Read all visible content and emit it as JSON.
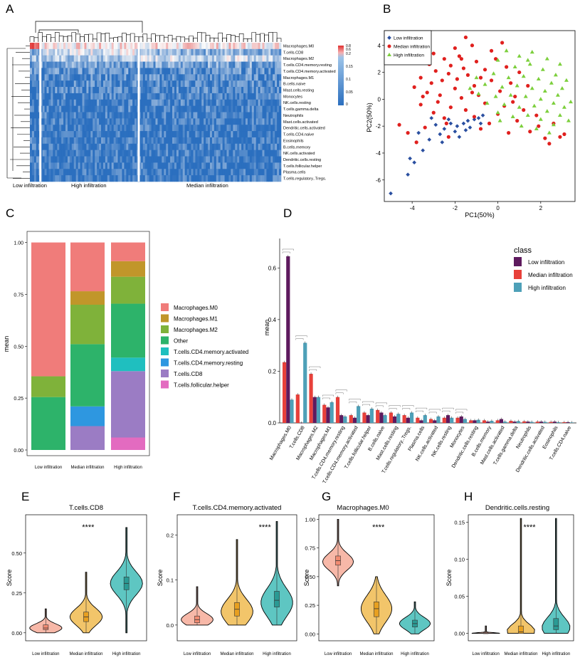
{
  "colors": {
    "low": "#5e1a5e",
    "median": "#e8403a",
    "high": "#4ea0b8",
    "pca_low": "#2a4fa0",
    "pca_median": "#e0201e",
    "pca_high": "#7ccf3c",
    "heat_low": "#2b6fbf",
    "heat_high": "#e03030"
  },
  "panel_letters": [
    "A",
    "B",
    "C",
    "D",
    "E",
    "F",
    "G",
    "H"
  ],
  "heatmap": {
    "row_labels": [
      "Macrophages.M0",
      "T.cells.CD8",
      "Macrophages.M2",
      "T.cells.CD4.memory.resting",
      "T.cells.CD4.memory.activated",
      "Macrophages.M1",
      "B.cells.naive",
      "Mast.cells.resting",
      "Monocytes",
      "NK.cells.resting",
      "T.cells.gamma.delta",
      "Neutrophils",
      "Mast.cells.activated",
      "Dendritic.cells.activated",
      "T.cells.CD4.naive",
      "Eosinophils",
      "B.cells.memory",
      "NK.cells.activated",
      "Dendritic.cells.resting",
      "T.cells.follicular.helper",
      "Plasma.cells",
      "T.cells.regulatory..Tregs."
    ],
    "legend_ticks": [
      "0.8",
      "0.6",
      "0.2",
      "0.15",
      "0.1",
      "0.05",
      "0"
    ],
    "group_labels": [
      "Low infiltration",
      "High infiltration",
      "Median infiltration"
    ]
  },
  "chart_data": [
    {
      "panel": "B",
      "type": "scatter",
      "xlabel": "PC1(50%)",
      "ylabel": "PC2(50%)",
      "xlim": [
        -5.3,
        3.6
      ],
      "ylim": [
        -7.6,
        5.1
      ],
      "xticks": [
        "-4",
        "-2",
        "0",
        "2"
      ],
      "yticks": [
        "4",
        "2",
        "0",
        "-2",
        "-4",
        "-6"
      ],
      "legend": [
        "Low infiltration",
        "Median infiltration",
        "High infiltration"
      ],
      "series": [
        {
          "name": "Low infiltration",
          "points": [
            [
              -5.0,
              -7.0
            ],
            [
              -4.2,
              -5.6
            ],
            [
              -3.9,
              -4.7
            ],
            [
              -4.1,
              -4.4
            ],
            [
              -3.5,
              -3.8
            ],
            [
              -3.2,
              -3.0
            ],
            [
              -2.7,
              -2.6
            ],
            [
              -2.5,
              -2.2
            ],
            [
              -2.2,
              -1.8
            ],
            [
              -1.9,
              -2.0
            ],
            [
              -1.6,
              -1.8
            ],
            [
              -1.4,
              -1.6
            ],
            [
              -1.3,
              -2.1
            ],
            [
              -1.1,
              -1.5
            ],
            [
              -0.9,
              -1.4
            ],
            [
              -0.7,
              -1.2
            ],
            [
              -2.9,
              -1.9
            ],
            [
              -2.0,
              -2.4
            ],
            [
              -3.7,
              -2.5
            ],
            [
              -1.8,
              -2.8
            ],
            [
              -2.3,
              -1.5
            ],
            [
              -3.1,
              -1.4
            ],
            [
              -0.8,
              -1.8
            ],
            [
              -2.6,
              -3.2
            ],
            [
              -1.5,
              -2.3
            ]
          ]
        },
        {
          "name": "Median infiltration",
          "points": [
            [
              -1.5,
              4.6
            ],
            [
              -1.2,
              4.0
            ],
            [
              -2.0,
              3.8
            ],
            [
              -0.3,
              3.6
            ],
            [
              0.2,
              4.2
            ],
            [
              -1.8,
              3.2
            ],
            [
              -2.5,
              3.0
            ],
            [
              -3.2,
              2.6
            ],
            [
              -2.9,
              2.1
            ],
            [
              -3.6,
              1.6
            ],
            [
              -3.9,
              0.9
            ],
            [
              -2.2,
              2.5
            ],
            [
              -1.0,
              2.8
            ],
            [
              -0.6,
              2.2
            ],
            [
              0.4,
              2.4
            ],
            [
              1.0,
              2.0
            ],
            [
              -1.4,
              1.8
            ],
            [
              -2.6,
              1.4
            ],
            [
              -3.3,
              0.5
            ],
            [
              -2.0,
              0.8
            ],
            [
              -1.1,
              1.0
            ],
            [
              -0.3,
              1.4
            ],
            [
              0.6,
              1.2
            ],
            [
              1.4,
              1.0
            ],
            [
              -2.8,
              -0.2
            ],
            [
              -1.7,
              0.1
            ],
            [
              -0.9,
              0.3
            ],
            [
              0.1,
              0.6
            ],
            [
              0.8,
              0.2
            ],
            [
              -3.6,
              -0.4
            ],
            [
              -3.0,
              -1.0
            ],
            [
              -2.2,
              -0.6
            ],
            [
              -1.5,
              -0.8
            ],
            [
              -0.6,
              -0.3
            ],
            [
              0.3,
              -0.5
            ],
            [
              1.2,
              -0.8
            ],
            [
              -2.5,
              -1.4
            ],
            [
              -1.1,
              -1.3
            ],
            [
              0.0,
              -1.1
            ],
            [
              0.9,
              -1.6
            ],
            [
              1.8,
              -1.2
            ],
            [
              2.6,
              -1.8
            ],
            [
              2.9,
              -2.8
            ],
            [
              2.4,
              -3.3
            ],
            [
              3.1,
              -2.6
            ],
            [
              -4.2,
              -2.5
            ],
            [
              -3.8,
              -3.2
            ],
            [
              -4.6,
              -1.9
            ],
            [
              -3.4,
              -2.1
            ],
            [
              -2.3,
              -2.8
            ],
            [
              -0.8,
              -2.2
            ],
            [
              0.5,
              -2.5
            ],
            [
              1.5,
              -2.4
            ],
            [
              2.2,
              -2.9
            ],
            [
              -4.3,
              3.2
            ],
            [
              -3.0,
              3.4
            ],
            [
              -1.6,
              2.3
            ],
            [
              -0.1,
              3.0
            ],
            [
              -2.7,
              0.3
            ],
            [
              -1.9,
              1.5
            ],
            [
              -3.1,
              1.2
            ],
            [
              0.7,
              -0.2
            ],
            [
              -0.4,
              -1.8
            ],
            [
              1.9,
              -2.0
            ],
            [
              -1.2,
              0.5
            ],
            [
              -2.4,
              -1.8
            ],
            [
              -3.5,
              0.2
            ],
            [
              -0.8,
              1.6
            ],
            [
              -1.7,
              3.0
            ],
            [
              -2.3,
              1.9
            ]
          ]
        },
        {
          "name": "High infiltration",
          "points": [
            [
              0.4,
              3.6
            ],
            [
              1.0,
              3.2
            ],
            [
              1.6,
              3.5
            ],
            [
              2.3,
              3.0
            ],
            [
              2.9,
              2.6
            ],
            [
              0.0,
              2.9
            ],
            [
              0.8,
              2.4
            ],
            [
              1.5,
              2.6
            ],
            [
              2.1,
              2.2
            ],
            [
              2.7,
              1.8
            ],
            [
              3.2,
              1.4
            ],
            [
              -0.2,
              1.9
            ],
            [
              0.5,
              1.6
            ],
            [
              1.2,
              1.7
            ],
            [
              1.9,
              1.5
            ],
            [
              2.5,
              1.2
            ],
            [
              3.0,
              0.8
            ],
            [
              -0.6,
              1.1
            ],
            [
              0.2,
              0.9
            ],
            [
              0.9,
              1.0
            ],
            [
              1.6,
              0.8
            ],
            [
              2.2,
              0.6
            ],
            [
              2.8,
              0.3
            ],
            [
              -0.9,
              0.4
            ],
            [
              -0.1,
              0.2
            ],
            [
              0.6,
              0.3
            ],
            [
              1.3,
              0.2
            ],
            [
              2.0,
              0.0
            ],
            [
              2.6,
              -0.3
            ],
            [
              3.1,
              -0.6
            ],
            [
              -0.5,
              -0.3
            ],
            [
              0.3,
              -0.4
            ],
            [
              1.0,
              -0.6
            ],
            [
              1.7,
              -0.5
            ],
            [
              2.3,
              -0.9
            ],
            [
              2.9,
              -1.2
            ],
            [
              0.0,
              -1.0
            ],
            [
              0.7,
              -1.3
            ],
            [
              1.4,
              -1.2
            ],
            [
              2.0,
              -1.5
            ],
            [
              2.6,
              -1.9
            ],
            [
              3.3,
              -1.6
            ],
            [
              -1.0,
              1.6
            ],
            [
              -1.3,
              0.8
            ],
            [
              0.1,
              -1.6
            ],
            [
              1.1,
              -2.0
            ],
            [
              1.8,
              -2.2
            ],
            [
              2.4,
              -2.5
            ],
            [
              3.4,
              -0.2
            ],
            [
              1.4,
              2.9
            ]
          ]
        }
      ]
    },
    {
      "panel": "C",
      "type": "bar",
      "stacked": true,
      "ylabel": "mean",
      "ylim": [
        0,
        1
      ],
      "yticks": [
        "0.00",
        "0.25",
        "0.50",
        "0.75",
        "1.00"
      ],
      "categories": [
        "Low infiltration",
        "Median infiltration",
        "High infiltration"
      ],
      "series": [
        {
          "name": "Macrophages.M0",
          "color": "#f07c7a",
          "values": [
            0.645,
            0.235,
            0.09
          ]
        },
        {
          "name": "Macrophages.M1",
          "color": "#c1962a",
          "values": [
            0.0,
            0.065,
            0.075
          ]
        },
        {
          "name": "Macrophages.M2",
          "color": "#7fb23a",
          "values": [
            0.1,
            0.19,
            0.13
          ]
        },
        {
          "name": "Other",
          "color": "#2db36a",
          "values": [
            0.255,
            0.3,
            0.26
          ]
        },
        {
          "name": "T.cells.CD4.memory.activated",
          "color": "#1fbfbf",
          "values": [
            0.0,
            0.0,
            0.065
          ]
        },
        {
          "name": "T.cells.CD4.memory.resting",
          "color": "#2e97e0",
          "values": [
            0.0,
            0.095,
            0.0
          ]
        },
        {
          "name": "T.cells.CD8",
          "color": "#9b7cc4",
          "values": [
            0.0,
            0.115,
            0.32
          ]
        },
        {
          "name": "T.cells.follicular.helper",
          "color": "#e36bc0",
          "values": [
            0.0,
            0.0,
            0.06
          ]
        }
      ]
    },
    {
      "panel": "D",
      "type": "bar",
      "ylabel": "mean",
      "ylim": [
        0,
        0.7
      ],
      "yticks": [
        "0.0",
        "0.2",
        "0.4",
        "0.6"
      ],
      "legend_title": "class",
      "categories": [
        "Macrophages.M0",
        "T.cells.CD8",
        "Macrophages.M2",
        "Macrophages.M1",
        "T.cells.CD4.memory.resting",
        "T.cells.CD4.memory.activated",
        "T.cells.follicular.helper",
        "B.cells.naive",
        "Mast.cells.resting",
        "T.cells.regulatory..Tregs.",
        "Plasma.cells",
        "NK.cells.activated",
        "NK.cells.resting",
        "Monocytes",
        "Dendritic.cells.resting",
        "B.cells.memory",
        "Mast.cells.activated",
        "T.cells.gamma.delta",
        "Neutrophils",
        "Dendritic.cells.activated",
        "Eosinophils",
        "T.cells.CD4.naive"
      ],
      "series": [
        {
          "name": "Low infiltration",
          "values": [
            0.645,
            0.0,
            0.1,
            0.06,
            0.03,
            0.02,
            0.03,
            0.04,
            0.025,
            0.02,
            0.01,
            0.01,
            0.03,
            0.025,
            0.01,
            0.005,
            0.015,
            0.005,
            0.005,
            0.005,
            0.005,
            0.003
          ]
        },
        {
          "name": "Median infiltration",
          "values": [
            0.235,
            0.11,
            0.19,
            0.07,
            0.1,
            0.03,
            0.04,
            0.05,
            0.04,
            0.03,
            0.02,
            0.015,
            0.02,
            0.02,
            0.01,
            0.01,
            0.01,
            0.008,
            0.006,
            0.005,
            0.004,
            0.003
          ]
        },
        {
          "name": "High infiltration",
          "values": [
            0.09,
            0.31,
            0.1,
            0.08,
            0.025,
            0.065,
            0.055,
            0.03,
            0.035,
            0.04,
            0.03,
            0.025,
            0.02,
            0.015,
            0.012,
            0.008,
            0.005,
            0.007,
            0.004,
            0.004,
            0.003,
            0.002
          ]
        }
      ]
    },
    {
      "panel": "E",
      "type": "violin",
      "title": "T.cells.CD8",
      "ylabel": "Score",
      "significance": "****",
      "categories": [
        "Low infiltration",
        "Median infiltration",
        "High infiltration"
      ],
      "ylim": [
        -0.05,
        0.74
      ],
      "yticks": [
        "0.00",
        "0.25",
        "0.50"
      ],
      "groups": [
        {
          "min": 0.0,
          "q1": 0.02,
          "median": 0.03,
          "q3": 0.05,
          "max": 0.15,
          "mode": 0.03
        },
        {
          "min": 0.0,
          "q1": 0.07,
          "median": 0.1,
          "q3": 0.13,
          "max": 0.38,
          "mode": 0.1
        },
        {
          "min": 0.0,
          "q1": 0.27,
          "median": 0.31,
          "q3": 0.35,
          "max": 0.66,
          "mode": 0.31
        }
      ]
    },
    {
      "panel": "F",
      "type": "violin",
      "title": "T.cells.CD4.memory.activated",
      "ylabel": "Score",
      "significance": "****",
      "categories": [
        "Low infiltration",
        "Median infiltration",
        "High infiltration"
      ],
      "ylim": [
        -0.035,
        0.245
      ],
      "yticks": [
        "0.0",
        "0.1",
        "0.2"
      ],
      "groups": [
        {
          "min": 0.0,
          "q1": 0.005,
          "median": 0.012,
          "q3": 0.02,
          "max": 0.085,
          "mode": 0.012
        },
        {
          "min": 0.0,
          "q1": 0.02,
          "median": 0.035,
          "q3": 0.05,
          "max": 0.19,
          "mode": 0.03
        },
        {
          "min": 0.0,
          "q1": 0.04,
          "median": 0.055,
          "q3": 0.075,
          "max": 0.23,
          "mode": 0.05
        }
      ]
    },
    {
      "panel": "G",
      "type": "violin",
      "title": "Macrophages.M0",
      "ylabel": "Score",
      "significance": "****",
      "categories": [
        "Low infiltration",
        "Median infiltration",
        "High infiltration"
      ],
      "ylim": [
        -0.06,
        1.04
      ],
      "yticks": [
        "0.00",
        "0.25",
        "0.50",
        "0.75",
        "1.00"
      ],
      "groups": [
        {
          "min": 0.42,
          "q1": 0.6,
          "median": 0.64,
          "q3": 0.68,
          "max": 1.0,
          "mode": 0.63
        },
        {
          "min": 0.0,
          "q1": 0.15,
          "median": 0.22,
          "q3": 0.28,
          "max": 0.5,
          "mode": 0.22
        },
        {
          "min": 0.0,
          "q1": 0.06,
          "median": 0.09,
          "q3": 0.12,
          "max": 0.28,
          "mode": 0.09
        }
      ]
    },
    {
      "panel": "H",
      "type": "violin",
      "title": "Dendritic.cells.resting",
      "ylabel": "Score",
      "significance": "****",
      "categories": [
        "Low infiltration",
        "Median infiltration",
        "High infiltration"
      ],
      "ylim": [
        -0.01,
        0.16
      ],
      "yticks": [
        "0.00",
        "0.05",
        "0.10",
        "0.15"
      ],
      "groups": [
        {
          "min": 0.0,
          "q1": 0.0,
          "median": 0.0,
          "q3": 0.001,
          "max": 0.01,
          "mode": 0.0
        },
        {
          "min": 0.0,
          "q1": 0.0,
          "median": 0.002,
          "q3": 0.01,
          "max": 0.155,
          "mode": 0.003
        },
        {
          "min": 0.0,
          "q1": 0.005,
          "median": 0.01,
          "q3": 0.02,
          "max": 0.155,
          "mode": 0.008
        }
      ]
    }
  ]
}
